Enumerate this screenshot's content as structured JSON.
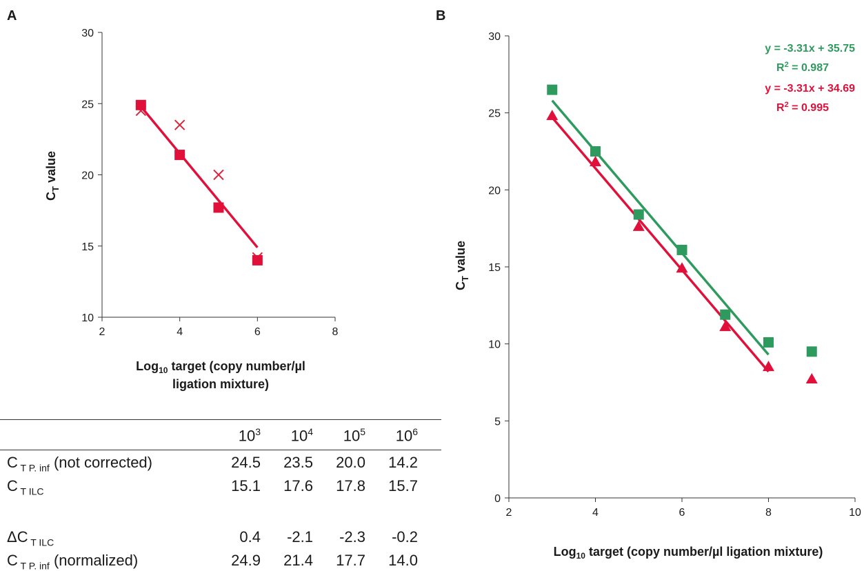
{
  "panels": {
    "a": "A",
    "b": "B"
  },
  "chart_data": [
    {
      "type": "scatter",
      "panel": "A",
      "xlabel_line1": "Log",
      "xlabel_sub": "10",
      "xlabel_rest1": " target (copy number/µl",
      "xlabel_line2": "ligation mixture)",
      "ylabel_main": "C",
      "ylabel_sub": "T",
      "ylabel_rest": " value",
      "xlim": [
        2,
        8
      ],
      "ylim": [
        10,
        30
      ],
      "xticks": [
        "2",
        "4",
        "6",
        "8"
      ],
      "yticks": [
        "10",
        "15",
        "20",
        "25",
        "30"
      ],
      "grid": false,
      "series": [
        {
          "marker": "x",
          "color": "#d7263d",
          "x": [
            3,
            4,
            5,
            6
          ],
          "y": [
            24.5,
            23.5,
            20.0,
            14.2
          ]
        },
        {
          "marker": "square",
          "color": "#e0103a",
          "x": [
            3,
            4,
            5,
            6
          ],
          "y": [
            24.9,
            21.4,
            17.7,
            14.0
          ]
        }
      ],
      "fit_line": {
        "color": "#e0103a",
        "x": [
          3,
          6
        ],
        "y": [
          24.8,
          14.9
        ]
      }
    },
    {
      "type": "scatter",
      "panel": "B",
      "xlabel_line1": "Log",
      "xlabel_sub": "10",
      "xlabel_rest1": " target (copy number/µl ligation mixture)",
      "ylabel_main": "C",
      "ylabel_sub": "T",
      "ylabel_rest": " value",
      "xlim": [
        2,
        10
      ],
      "ylim": [
        0,
        30
      ],
      "xticks": [
        "2",
        "4",
        "6",
        "8",
        "10"
      ],
      "yticks": [
        "0",
        "5",
        "10",
        "15",
        "20",
        "25",
        "30"
      ],
      "grid": false,
      "series": [
        {
          "marker": "square",
          "color": "#2e9a5e",
          "x": [
            3,
            4,
            5,
            6,
            7,
            8,
            9
          ],
          "y": [
            26.5,
            22.5,
            18.4,
            16.1,
            11.9,
            10.1,
            9.5
          ]
        },
        {
          "marker": "triangle",
          "color": "#e0103a",
          "x": [
            3,
            4,
            5,
            6,
            7,
            8,
            9
          ],
          "y": [
            24.8,
            21.8,
            17.6,
            14.9,
            11.1,
            8.5,
            7.7
          ]
        }
      ],
      "fits": [
        {
          "color": "#2e9a5e",
          "x": [
            3,
            8
          ],
          "y": [
            25.8,
            9.3
          ],
          "equation": "y = -3.31x + 35.75",
          "r2_label": "R",
          "r2_sup": "2",
          "r2_value": " = 0.987"
        },
        {
          "color": "#e0103a",
          "x": [
            3,
            8
          ],
          "y": [
            24.7,
            8.2
          ],
          "equation": "y = -3.31x + 34.69",
          "r2_label": "R",
          "r2_sup": "2",
          "r2_value": " = 0.995"
        }
      ]
    }
  ],
  "table": {
    "columns": [
      {
        "base": "10",
        "exp": "3"
      },
      {
        "base": "10",
        "exp": "4"
      },
      {
        "base": "10",
        "exp": "5"
      },
      {
        "base": "10",
        "exp": "6"
      }
    ],
    "rows": [
      {
        "label_pre": "C",
        "label_sub": "T P. inf",
        "label_post": " (not corrected)",
        "values": [
          "24.5",
          "23.5",
          "20.0",
          "14.2"
        ]
      },
      {
        "label_pre": "C",
        "label_sub": "T ILC",
        "label_post": "",
        "values": [
          "15.1",
          "17.6",
          "17.8",
          "15.7"
        ]
      },
      {
        "label_pre": "ΔC",
        "label_sub": "T ILC",
        "label_post": "",
        "values": [
          "0.4",
          "-2.1",
          "-2.3",
          "-0.2"
        ]
      },
      {
        "label_pre": "C",
        "label_sub": "T P. inf",
        "label_post": " (normalized)",
        "values": [
          "24.9",
          "21.4",
          "17.7",
          "14.0"
        ]
      }
    ]
  }
}
